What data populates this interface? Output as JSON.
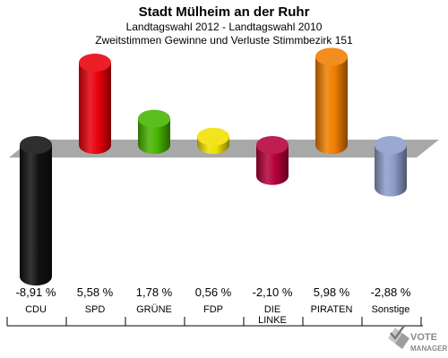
{
  "title": "Stadt Mülheim an der Ruhr",
  "subtitle_1": "Landtagswahl 2012 - Landtagswahl 2010",
  "subtitle_2": "Zweitstimmen Gewinne und Verluste Stimmbezirk 151",
  "logo": {
    "line1": "VOTE",
    "line2": "MANAGER"
  },
  "chart_data": {
    "type": "bar",
    "categories": [
      "CDU",
      "SPD",
      "GRÜNE",
      "FDP",
      "DIE LINKE",
      "PIRATEN",
      "Sonstige"
    ],
    "category_lines": [
      [
        "CDU"
      ],
      [
        "SPD"
      ],
      [
        "GRÜNE"
      ],
      [
        "FDP"
      ],
      [
        "DIE",
        "LINKE"
      ],
      [
        "PIRATEN"
      ],
      [
        "Sonstige"
      ]
    ],
    "values": [
      -8.91,
      5.58,
      1.78,
      0.56,
      -2.1,
      5.98,
      -2.88
    ],
    "value_labels": [
      "-8,91 %",
      "5,58 %",
      "1,78 %",
      "0,56 %",
      "-2,10 %",
      "5,98 %",
      "-2,88 %"
    ],
    "colors": [
      "#111111",
      "#e8000b",
      "#46b400",
      "#f0e000",
      "#b5003a",
      "#f07d00",
      "#8c9dc8"
    ],
    "unit": "%",
    "ylim": [
      -9,
      6
    ],
    "grid": false,
    "legend": "none"
  }
}
